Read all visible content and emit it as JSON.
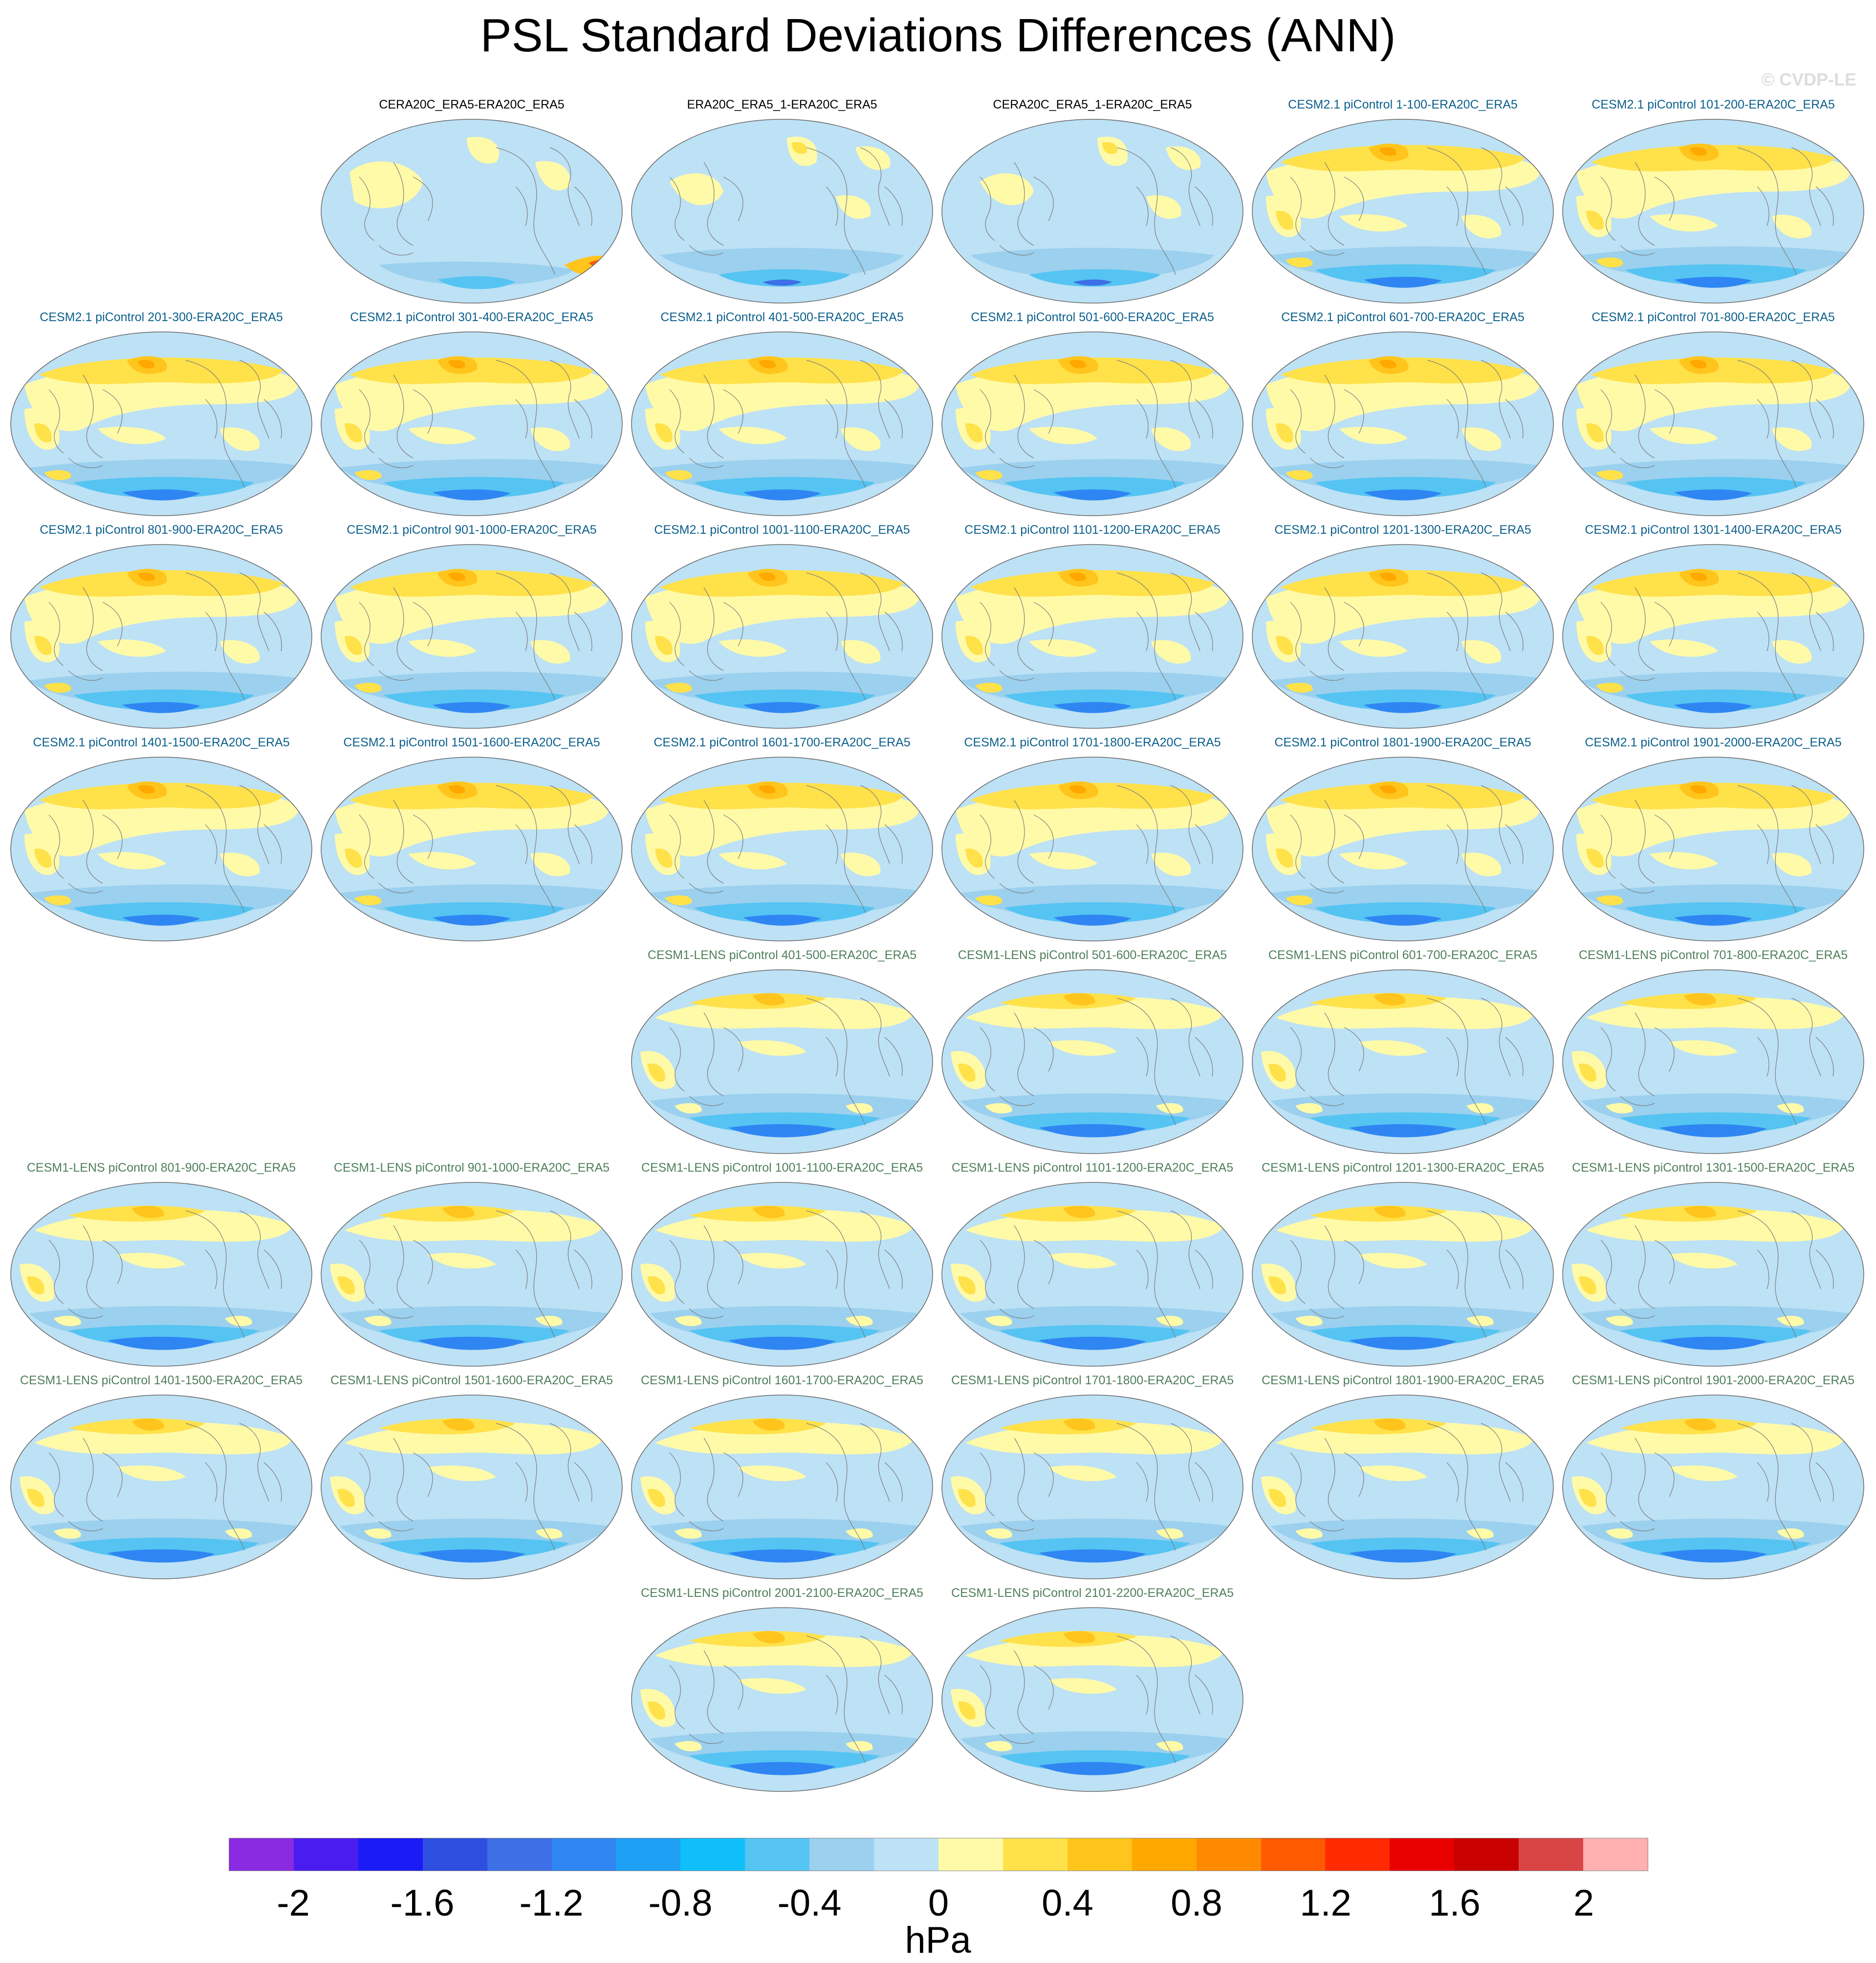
{
  "title": "PSL Standard Deviations Differences (ANN)",
  "watermark": "© CVDP-LE",
  "colors": {
    "obs_title": "#000000",
    "cesm2_title": "#0b5f8c",
    "lens_title": "#4f7f5a",
    "coast": "#7a7a7a"
  },
  "panels": [
    {
      "label": "CERA20C_ERA5-ERA20C_ERA5",
      "group": "obs",
      "row": 0,
      "col": 1,
      "variant": 0
    },
    {
      "label": "ERA20C_ERA5_1-ERA20C_ERA5",
      "group": "obs",
      "row": 0,
      "col": 2,
      "variant": 1
    },
    {
      "label": "CERA20C_ERA5_1-ERA20C_ERA5",
      "group": "obs",
      "row": 0,
      "col": 3,
      "variant": 1
    },
    {
      "label": "CESM2.1 piControl 1-100-ERA20C_ERA5",
      "group": "cesm2",
      "row": 0,
      "col": 4,
      "variant": 2
    },
    {
      "label": "CESM2.1 piControl 101-200-ERA20C_ERA5",
      "group": "cesm2",
      "row": 0,
      "col": 5,
      "variant": 2
    },
    {
      "label": "CESM2.1 piControl 201-300-ERA20C_ERA5",
      "group": "cesm2",
      "row": 1,
      "col": 0,
      "variant": 2
    },
    {
      "label": "CESM2.1 piControl 301-400-ERA20C_ERA5",
      "group": "cesm2",
      "row": 1,
      "col": 1,
      "variant": 2
    },
    {
      "label": "CESM2.1 piControl 401-500-ERA20C_ERA5",
      "group": "cesm2",
      "row": 1,
      "col": 2,
      "variant": 2
    },
    {
      "label": "CESM2.1 piControl 501-600-ERA20C_ERA5",
      "group": "cesm2",
      "row": 1,
      "col": 3,
      "variant": 2
    },
    {
      "label": "CESM2.1 piControl 601-700-ERA20C_ERA5",
      "group": "cesm2",
      "row": 1,
      "col": 4,
      "variant": 2
    },
    {
      "label": "CESM2.1 piControl 701-800-ERA20C_ERA5",
      "group": "cesm2",
      "row": 1,
      "col": 5,
      "variant": 2
    },
    {
      "label": "CESM2.1 piControl 801-900-ERA20C_ERA5",
      "group": "cesm2",
      "row": 2,
      "col": 0,
      "variant": 2
    },
    {
      "label": "CESM2.1 piControl 901-1000-ERA20C_ERA5",
      "group": "cesm2",
      "row": 2,
      "col": 1,
      "variant": 2
    },
    {
      "label": "CESM2.1 piControl 1001-1100-ERA20C_ERA5",
      "group": "cesm2",
      "row": 2,
      "col": 2,
      "variant": 2
    },
    {
      "label": "CESM2.1 piControl 1101-1200-ERA20C_ERA5",
      "group": "cesm2",
      "row": 2,
      "col": 3,
      "variant": 2
    },
    {
      "label": "CESM2.1 piControl 1201-1300-ERA20C_ERA5",
      "group": "cesm2",
      "row": 2,
      "col": 4,
      "variant": 2
    },
    {
      "label": "CESM2.1 piControl 1301-1400-ERA20C_ERA5",
      "group": "cesm2",
      "row": 2,
      "col": 5,
      "variant": 2
    },
    {
      "label": "CESM2.1 piControl 1401-1500-ERA20C_ERA5",
      "group": "cesm2",
      "row": 3,
      "col": 0,
      "variant": 2
    },
    {
      "label": "CESM2.1 piControl 1501-1600-ERA20C_ERA5",
      "group": "cesm2",
      "row": 3,
      "col": 1,
      "variant": 2
    },
    {
      "label": "CESM2.1 piControl 1601-1700-ERA20C_ERA5",
      "group": "cesm2",
      "row": 3,
      "col": 2,
      "variant": 2
    },
    {
      "label": "CESM2.1 piControl 1701-1800-ERA20C_ERA5",
      "group": "cesm2",
      "row": 3,
      "col": 3,
      "variant": 2
    },
    {
      "label": "CESM2.1 piControl 1801-1900-ERA20C_ERA5",
      "group": "cesm2",
      "row": 3,
      "col": 4,
      "variant": 2
    },
    {
      "label": "CESM2.1 piControl 1901-2000-ERA20C_ERA5",
      "group": "cesm2",
      "row": 3,
      "col": 5,
      "variant": 2
    },
    {
      "label": "CESM1-LENS piControl 401-500-ERA20C_ERA5",
      "group": "lens",
      "row": 4,
      "col": 2,
      "variant": 3
    },
    {
      "label": "CESM1-LENS piControl 501-600-ERA20C_ERA5",
      "group": "lens",
      "row": 4,
      "col": 3,
      "variant": 3
    },
    {
      "label": "CESM1-LENS piControl 601-700-ERA20C_ERA5",
      "group": "lens",
      "row": 4,
      "col": 4,
      "variant": 3
    },
    {
      "label": "CESM1-LENS piControl 701-800-ERA20C_ERA5",
      "group": "lens",
      "row": 4,
      "col": 5,
      "variant": 3
    },
    {
      "label": "CESM1-LENS piControl 801-900-ERA20C_ERA5",
      "group": "lens",
      "row": 5,
      "col": 0,
      "variant": 3
    },
    {
      "label": "CESM1-LENS piControl 901-1000-ERA20C_ERA5",
      "group": "lens",
      "row": 5,
      "col": 1,
      "variant": 3
    },
    {
      "label": "CESM1-LENS piControl 1001-1100-ERA20C_ERA5",
      "group": "lens",
      "row": 5,
      "col": 2,
      "variant": 3
    },
    {
      "label": "CESM1-LENS piControl 1101-1200-ERA20C_ERA5",
      "group": "lens",
      "row": 5,
      "col": 3,
      "variant": 3
    },
    {
      "label": "CESM1-LENS piControl 1201-1300-ERA20C_ERA5",
      "group": "lens",
      "row": 5,
      "col": 4,
      "variant": 3
    },
    {
      "label": "CESM1-LENS piControl 1301-1500-ERA20C_ERA5",
      "group": "lens",
      "row": 5,
      "col": 5,
      "variant": 3
    },
    {
      "label": "CESM1-LENS piControl 1401-1500-ERA20C_ERA5",
      "group": "lens",
      "row": 6,
      "col": 0,
      "variant": 3
    },
    {
      "label": "CESM1-LENS piControl 1501-1600-ERA20C_ERA5",
      "group": "lens",
      "row": 6,
      "col": 1,
      "variant": 3
    },
    {
      "label": "CESM1-LENS piControl 1601-1700-ERA20C_ERA5",
      "group": "lens",
      "row": 6,
      "col": 2,
      "variant": 3
    },
    {
      "label": "CESM1-LENS piControl 1701-1800-ERA20C_ERA5",
      "group": "lens",
      "row": 6,
      "col": 3,
      "variant": 3
    },
    {
      "label": "CESM1-LENS piControl 1801-1900-ERA20C_ERA5",
      "group": "lens",
      "row": 6,
      "col": 4,
      "variant": 3
    },
    {
      "label": "CESM1-LENS piControl 1901-2000-ERA20C_ERA5",
      "group": "lens",
      "row": 6,
      "col": 5,
      "variant": 3
    },
    {
      "label": "CESM1-LENS piControl 2001-2100-ERA20C_ERA5",
      "group": "lens",
      "row": 7,
      "col": 2,
      "variant": 3
    },
    {
      "label": "CESM1-LENS piControl 2101-2200-ERA20C_ERA5",
      "group": "lens",
      "row": 7,
      "col": 3,
      "variant": 3
    }
  ],
  "colorbar": {
    "colors": [
      "#8a2be2",
      "#4b1cf0",
      "#1b1bf5",
      "#2f4fe0",
      "#3d6fe6",
      "#2f86f2",
      "#1ea0f5",
      "#10bef9",
      "#55c4f2",
      "#9bd0ee",
      "#bde1f5",
      "#fffaa8",
      "#ffe14a",
      "#ffc51c",
      "#ffa800",
      "#ff8a00",
      "#ff5a00",
      "#ff2a00",
      "#e80000",
      "#c80000",
      "#d94545",
      "#ffb0b0"
    ],
    "ticks": [
      "-2",
      "-1.6",
      "-1.2",
      "-0.8",
      "-0.4",
      "0",
      "0.4",
      "0.8",
      "1.2",
      "1.6",
      "2"
    ],
    "units": "hPa"
  }
}
